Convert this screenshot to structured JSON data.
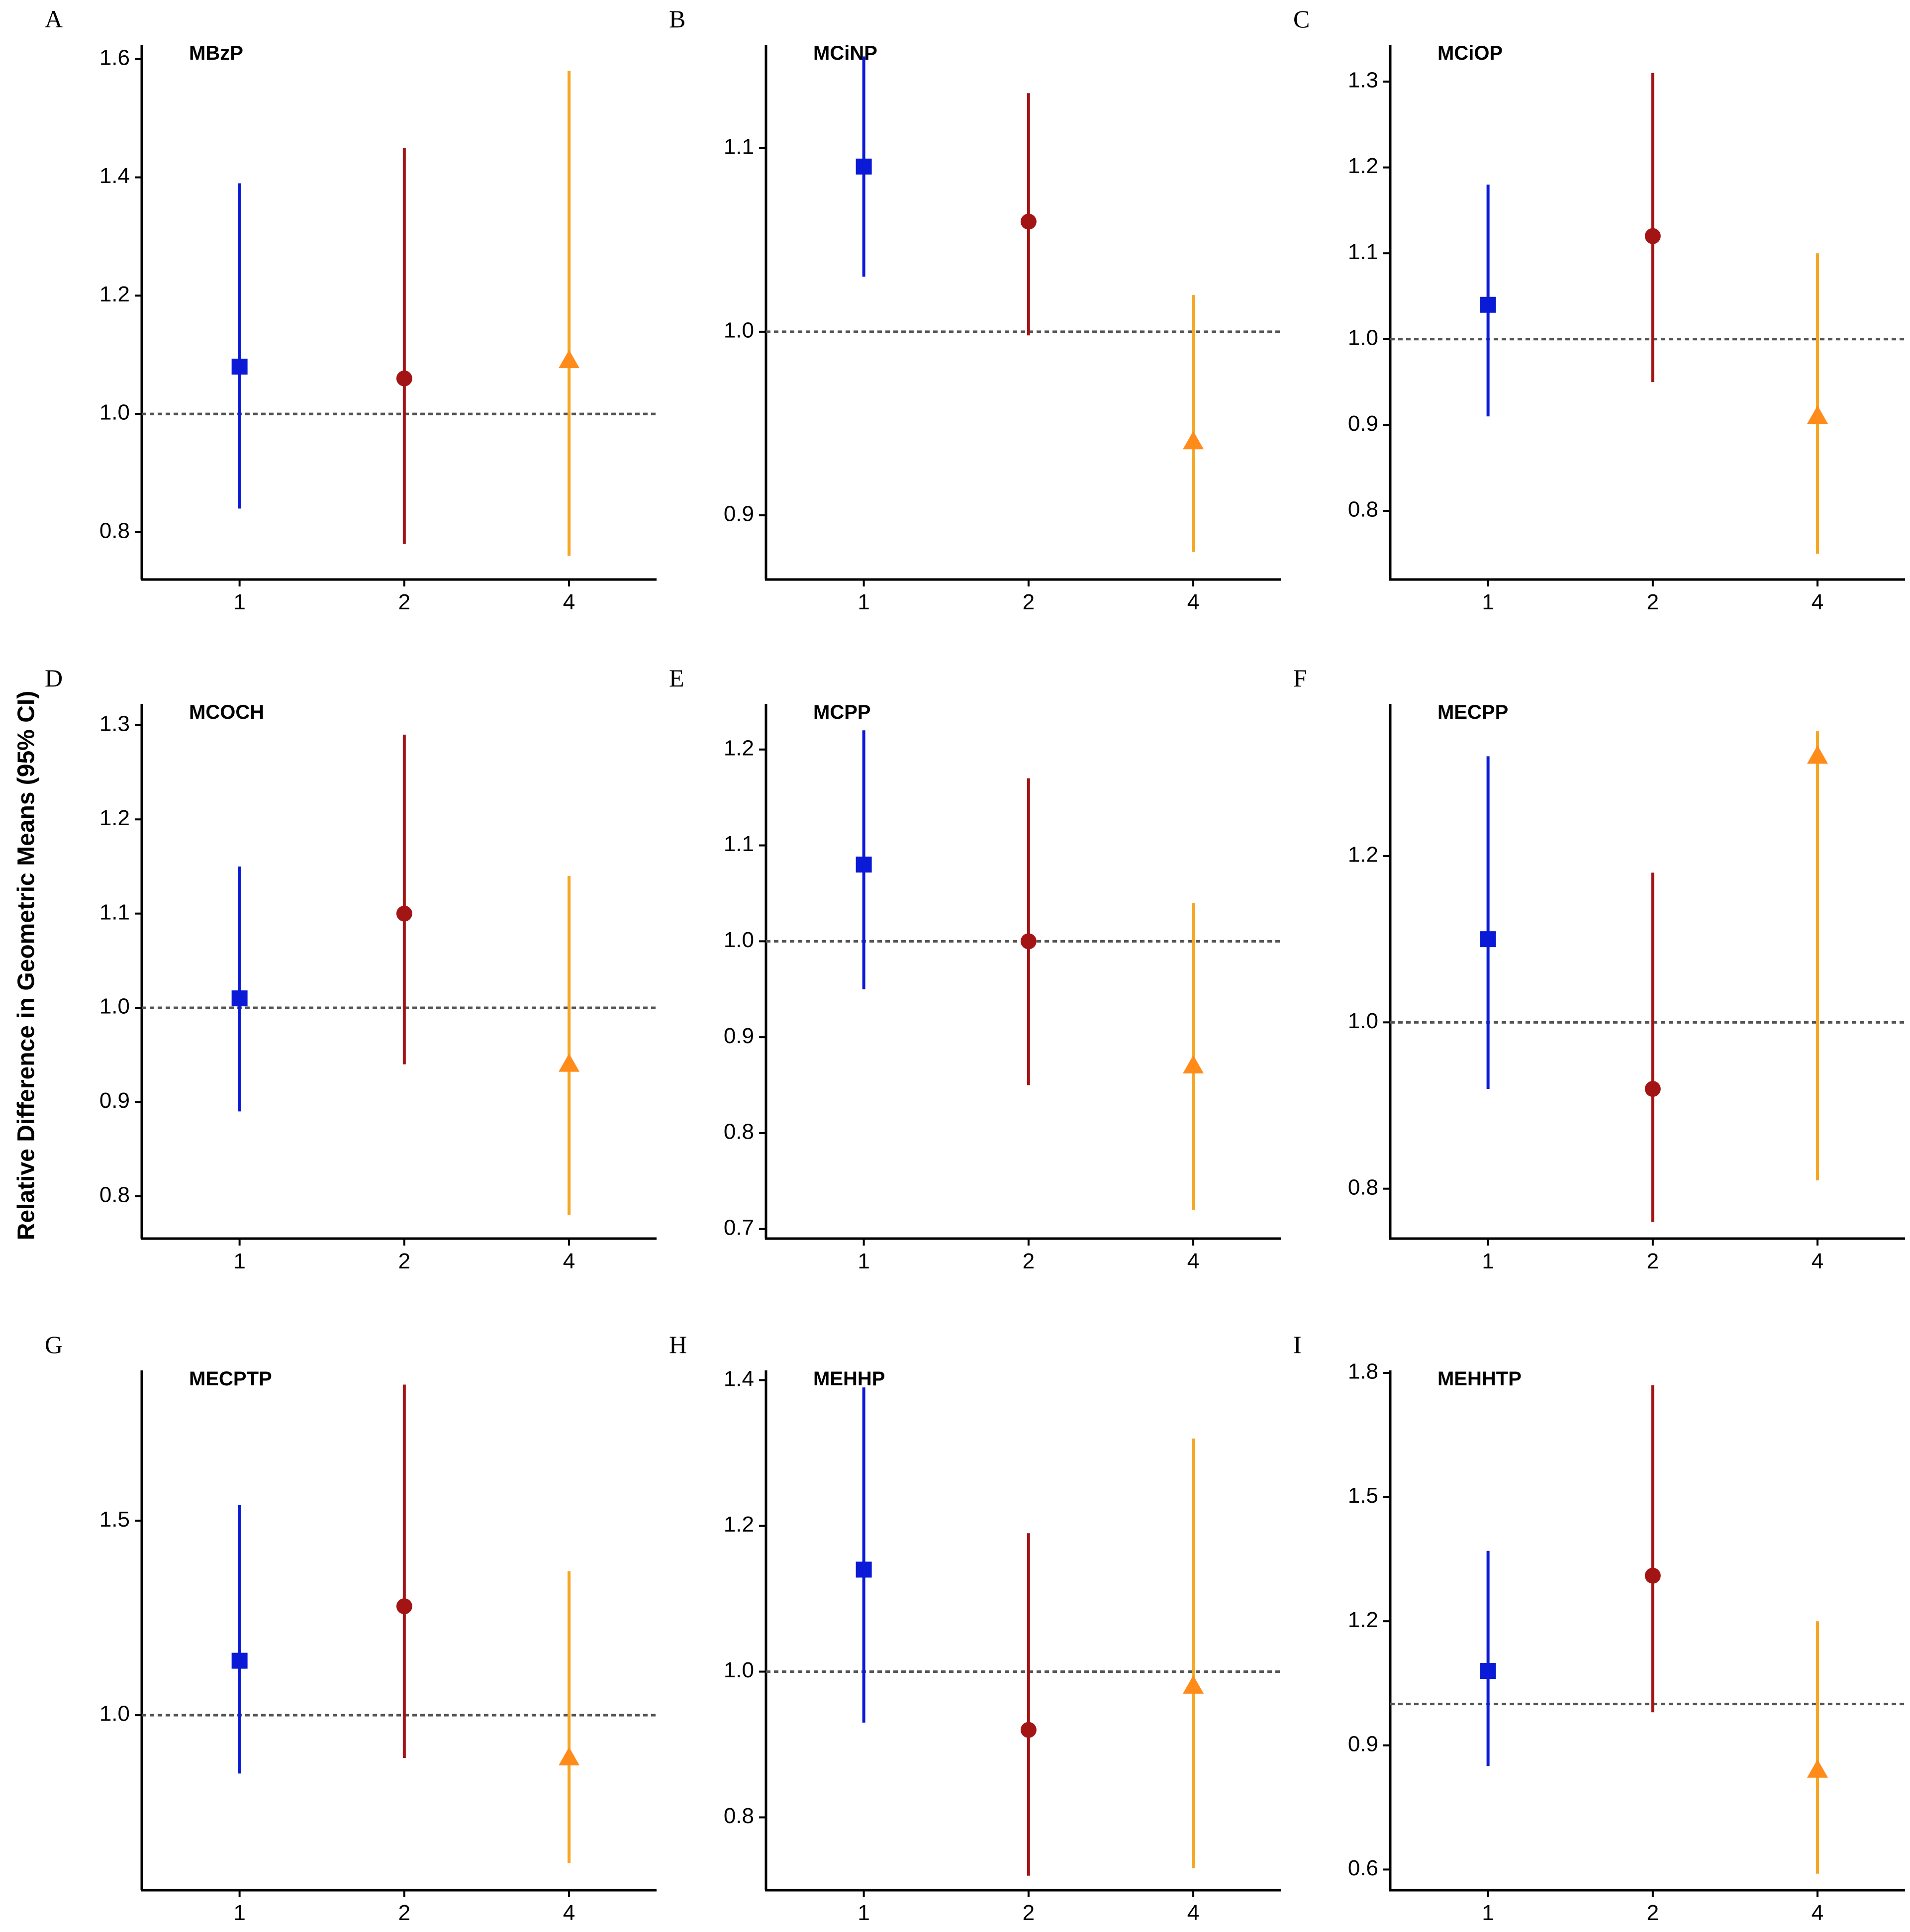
{
  "figure": {
    "ylabel": "Relative Difference in Geometric Means (95% CI)"
  },
  "colors": {
    "group1": "#0a1ad6",
    "group2": "#a31515",
    "group4": "#f5a623",
    "group4_marker": "#ff8c1a",
    "reference_line": "#555555",
    "axis": "#000000"
  },
  "chart_data": [
    {
      "panel": "A",
      "title": "MBzP",
      "type": "scatter",
      "categories": [
        "1",
        "2",
        "4"
      ],
      "estimates": [
        1.08,
        1.06,
        1.09
      ],
      "lower": [
        0.84,
        0.78,
        0.76
      ],
      "upper": [
        1.39,
        1.45,
        1.58
      ],
      "ylim": [
        0.72,
        1.62
      ],
      "yticks": [
        0.8,
        1.0,
        1.2,
        1.4,
        1.6
      ],
      "ytick_labels": [
        "0.8",
        "1.0",
        "1.2",
        "1.4",
        "1.6"
      ],
      "reference": 1.0
    },
    {
      "panel": "B",
      "title": "MCiNP",
      "type": "scatter",
      "categories": [
        "1",
        "2",
        "4"
      ],
      "estimates": [
        1.09,
        1.06,
        0.94
      ],
      "lower": [
        1.03,
        0.998,
        0.88
      ],
      "upper": [
        1.15,
        1.13,
        1.02
      ],
      "ylim": [
        0.865,
        1.155
      ],
      "yticks": [
        0.9,
        1.0,
        1.1
      ],
      "ytick_labels": [
        "0.9",
        "1.0",
        "1.1"
      ],
      "reference": 1.0
    },
    {
      "panel": "C",
      "title": "MCiOP",
      "type": "scatter",
      "categories": [
        "1",
        "2",
        "4"
      ],
      "estimates": [
        1.04,
        1.12,
        0.91
      ],
      "lower": [
        0.91,
        0.95,
        0.75
      ],
      "upper": [
        1.18,
        1.31,
        1.1
      ],
      "ylim": [
        0.72,
        1.34
      ],
      "yticks": [
        0.8,
        0.9,
        1.0,
        1.1,
        1.2,
        1.3
      ],
      "ytick_labels": [
        "0.8",
        "0.9",
        "1.0",
        "1.1",
        "1.2",
        "1.3"
      ],
      "reference": 1.0
    },
    {
      "panel": "D",
      "title": "MCOCH",
      "type": "scatter",
      "categories": [
        "1",
        "2",
        "4"
      ],
      "estimates": [
        1.01,
        1.1,
        0.94
      ],
      "lower": [
        0.89,
        0.94,
        0.78
      ],
      "upper": [
        1.15,
        1.29,
        1.14
      ],
      "ylim": [
        0.755,
        1.32
      ],
      "yticks": [
        0.8,
        0.9,
        1.0,
        1.1,
        1.2,
        1.3
      ],
      "ytick_labels": [
        "0.8",
        "0.9",
        "1.0",
        "1.1",
        "1.2",
        "1.3"
      ],
      "reference": 1.0
    },
    {
      "panel": "E",
      "title": "MCPP",
      "type": "scatter",
      "categories": [
        "1",
        "2",
        "4"
      ],
      "estimates": [
        1.08,
        1.0,
        0.87
      ],
      "lower": [
        0.95,
        0.85,
        0.72
      ],
      "upper": [
        1.22,
        1.17,
        1.04
      ],
      "ylim": [
        0.69,
        1.245
      ],
      "yticks": [
        0.7,
        0.8,
        0.9,
        1.0,
        1.1,
        1.2
      ],
      "ytick_labels": [
        "0.7",
        "0.8",
        "0.9",
        "1.0",
        "1.1",
        "1.2"
      ],
      "reference": 1.0
    },
    {
      "panel": "F",
      "title": "MECPP",
      "type": "scatter",
      "categories": [
        "1",
        "2",
        "4"
      ],
      "estimates": [
        1.1,
        0.92,
        1.32
      ],
      "lower": [
        0.92,
        0.76,
        0.81
      ],
      "upper": [
        1.32,
        1.18,
        1.35
      ],
      "ylim": [
        0.74,
        1.38
      ],
      "yticks": [
        0.8,
        1.0,
        1.2
      ],
      "ytick_labels": [
        "0.8",
        "1.0",
        "1.2"
      ],
      "reference": 1.0
    },
    {
      "panel": "G",
      "title": "MECPTP",
      "type": "scatter",
      "categories": [
        "1",
        "2",
        "4"
      ],
      "estimates": [
        1.14,
        1.28,
        0.89
      ],
      "lower": [
        0.85,
        0.89,
        0.62
      ],
      "upper": [
        1.54,
        1.85,
        1.37
      ],
      "ylim": [
        0.55,
        1.88
      ],
      "yticks": [
        1.0,
        1.5
      ],
      "ytick_labels": [
        "1.0",
        "1.5"
      ],
      "reference": 1.0
    },
    {
      "panel": "H",
      "title": "MEHHP",
      "type": "scatter",
      "categories": [
        "1",
        "2",
        "4"
      ],
      "estimates": [
        1.14,
        0.92,
        0.98
      ],
      "lower": [
        0.93,
        0.72,
        0.73
      ],
      "upper": [
        1.39,
        1.19,
        1.32
      ],
      "ylim": [
        0.7,
        1.41
      ],
      "yticks": [
        0.8,
        1.0,
        1.2,
        1.4
      ],
      "ytick_labels": [
        "0.8",
        "1.0",
        "1.2",
        "1.4"
      ],
      "reference": 1.0
    },
    {
      "panel": "I",
      "title": "MEHHTP",
      "type": "scatter",
      "categories": [
        "1",
        "2",
        "4"
      ],
      "estimates": [
        1.08,
        1.31,
        0.84
      ],
      "lower": [
        0.85,
        0.98,
        0.59
      ],
      "upper": [
        1.37,
        1.77,
        1.2
      ],
      "ylim": [
        0.55,
        1.8
      ],
      "yticks": [
        0.6,
        0.9,
        1.2,
        1.5,
        1.8
      ],
      "ytick_labels": [
        "0.6",
        "0.9",
        "1.2",
        "1.5",
        "1.8"
      ],
      "reference": 1.0
    }
  ]
}
